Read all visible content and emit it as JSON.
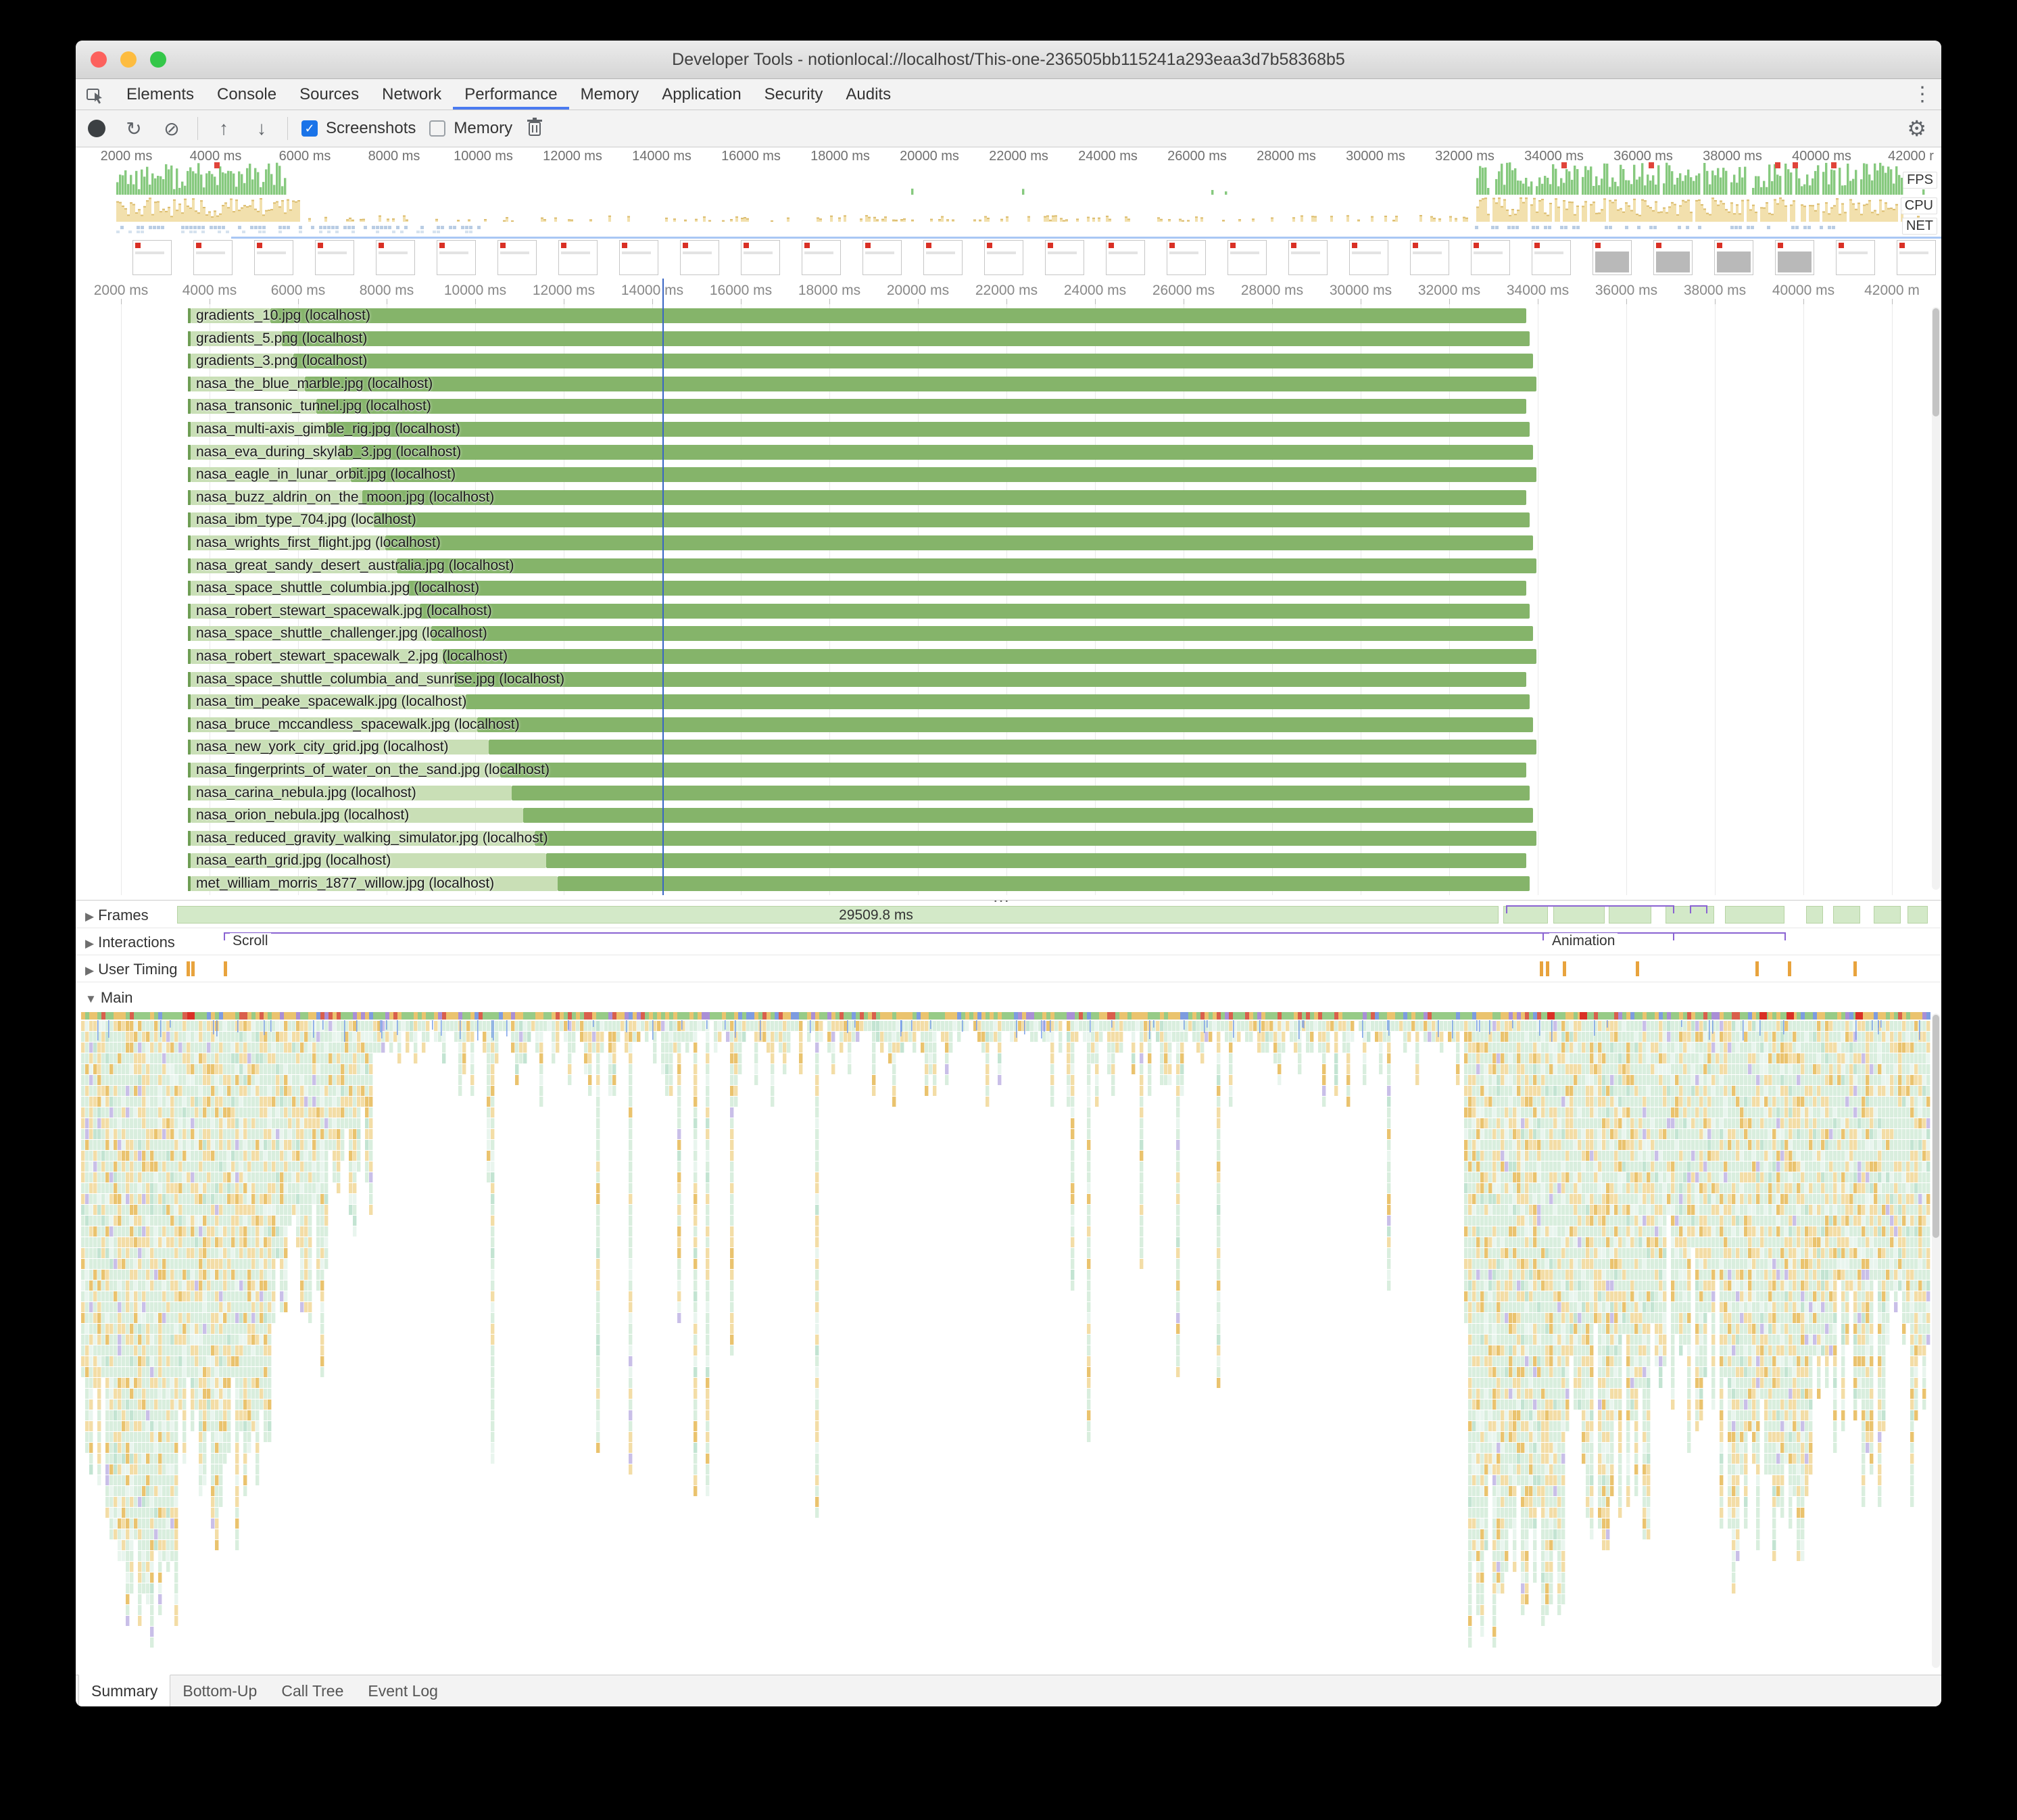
{
  "window": {
    "title": "Developer Tools - notionlocal://localhost/This-one-236505bb115241a293eaa3d7b58368b5"
  },
  "main_tabs": {
    "items": [
      "Elements",
      "Console",
      "Sources",
      "Network",
      "Performance",
      "Memory",
      "Application",
      "Security",
      "Audits"
    ],
    "active_index": 4
  },
  "toolbar": {
    "screenshots_label": "Screenshots",
    "screenshots_checked": true,
    "memory_label": "Memory",
    "memory_checked": false,
    "check_glyph": "✓"
  },
  "overview": {
    "tick_labels": [
      "2000 ms",
      "4000 ms",
      "6000 ms",
      "8000 ms",
      "10000 ms",
      "12000 ms",
      "14000 ms",
      "16000 ms",
      "18000 ms",
      "20000 ms",
      "22000 ms",
      "24000 ms",
      "26000 ms",
      "28000 ms",
      "30000 ms",
      "32000 ms",
      "34000 ms",
      "36000 ms",
      "38000 ms",
      "40000 ms",
      "42000 r"
    ],
    "lane_labels": [
      "FPS",
      "CPU",
      "NET"
    ]
  },
  "timeline": {
    "tick_labels": [
      "2000 ms",
      "4000 ms",
      "6000 ms",
      "8000 ms",
      "10000 ms",
      "12000 ms",
      "14000 ms",
      "16000 ms",
      "18000 ms",
      "20000 ms",
      "22000 ms",
      "24000 ms",
      "26000 ms",
      "28000 ms",
      "30000 ms",
      "32000 ms",
      "34000 ms",
      "36000 ms",
      "38000 ms",
      "40000 ms",
      "42000 m"
    ]
  },
  "network_requests": [
    "gradients_10.jpg (localhost)",
    "gradients_5.png (localhost)",
    "gradients_3.png (localhost)",
    "nasa_the_blue_marble.jpg (localhost)",
    "nasa_transonic_tunnel.jpg (localhost)",
    "nasa_multi-axis_gimble_rig.jpg (localhost)",
    "nasa_eva_during_skylab_3.jpg (localhost)",
    "nasa_eagle_in_lunar_orbit.jpg (localhost)",
    "nasa_buzz_aldrin_on_the_moon.jpg (localhost)",
    "nasa_ibm_type_704.jpg (localhost)",
    "nasa_wrights_first_flight.jpg (localhost)",
    "nasa_great_sandy_desert_australia.jpg (localhost)",
    "nasa_space_shuttle_columbia.jpg (localhost)",
    "nasa_robert_stewart_spacewalk.jpg (localhost)",
    "nasa_space_shuttle_challenger.jpg (localhost)",
    "nasa_robert_stewart_spacewalk_2.jpg (localhost)",
    "nasa_space_shuttle_columbia_and_sunrise.jpg (localhost)",
    "nasa_tim_peake_spacewalk.jpg (localhost)",
    "nasa_bruce_mccandless_spacewalk.jpg (localhost)",
    "nasa_new_york_city_grid.jpg (localhost)",
    "nasa_fingerprints_of_water_on_the_sand.jpg (localhost)",
    "nasa_carina_nebula.jpg (localhost)",
    "nasa_orion_nebula.jpg (localhost)",
    "nasa_reduced_gravity_walking_simulator.jpg (localhost)",
    "nasa_earth_grid.jpg (localhost)",
    "met_william_morris_1877_willow.jpg (localhost)"
  ],
  "network_ellipsis": "…",
  "tracks": {
    "frames_label": "Frames",
    "frames_duration": "29509.8 ms",
    "interactions_label": "Interactions",
    "scroll_label": "Scroll",
    "animation_label": "Animation",
    "user_timing_label": "User Timing",
    "main_label": "Main"
  },
  "bottom_tabs": {
    "items": [
      "Summary",
      "Bottom-Up",
      "Call Tree",
      "Event Log"
    ],
    "active_index": 0
  },
  "colors": {
    "accent": "#4a7af0",
    "network_bar": "#85b46a",
    "network_bar_light": "#c9dfb6",
    "frames_fill": "#d3e9c8",
    "interaction": "#8a63d2",
    "user_timing": "#e8a33d",
    "record_red_marker": "#d93025"
  }
}
